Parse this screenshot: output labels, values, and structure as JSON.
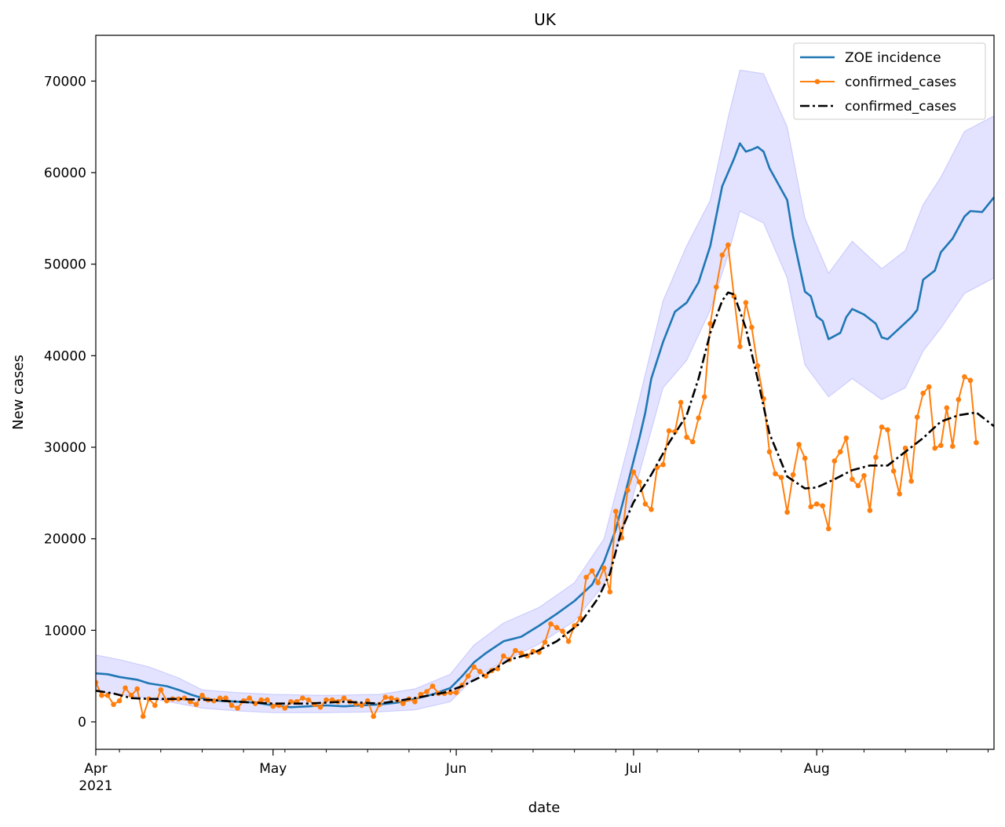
{
  "chart_data": {
    "type": "line",
    "title": "UK",
    "xlabel": "date",
    "ylabel": "New cases",
    "x_start": "2021-04-01",
    "x_end": "2021-08-31",
    "xlim": [
      "2021-04-01",
      "2021-08-31"
    ],
    "ylim": [
      -3000,
      75000
    ],
    "y_ticks": [
      0,
      10000,
      20000,
      30000,
      40000,
      50000,
      60000,
      70000
    ],
    "y_tick_labels": [
      "0",
      "10000",
      "20000",
      "30000",
      "40000",
      "50000",
      "60000",
      "70000"
    ],
    "x_ticks": [
      {
        "date": "2021-04-01",
        "label": "Apr",
        "sublabel": "2021"
      },
      {
        "date": "2021-05-01",
        "label": "May",
        "sublabel": ""
      },
      {
        "date": "2021-06-01",
        "label": "Jun",
        "sublabel": ""
      },
      {
        "date": "2021-07-01",
        "label": "Jul",
        "sublabel": ""
      },
      {
        "date": "2021-08-01",
        "label": "Aug",
        "sublabel": ""
      }
    ],
    "legend_position": "top-right",
    "grid": false,
    "series": [
      {
        "name": "ZOE incidence",
        "color": "#1f77b4",
        "style": "solid",
        "band_color": "#6666ff",
        "points": [
          [
            "2021-04-01",
            5300
          ],
          [
            "2021-04-03",
            5200
          ],
          [
            "2021-04-05",
            4900
          ],
          [
            "2021-04-08",
            4600
          ],
          [
            "2021-04-10",
            4200
          ],
          [
            "2021-04-13",
            3900
          ],
          [
            "2021-04-15",
            3500
          ],
          [
            "2021-04-17",
            3000
          ],
          [
            "2021-04-19",
            2600
          ],
          [
            "2021-04-22",
            2300
          ],
          [
            "2021-04-25",
            2200
          ],
          [
            "2021-04-28",
            2100
          ],
          [
            "2021-05-01",
            1800
          ],
          [
            "2021-05-04",
            1600
          ],
          [
            "2021-05-07",
            1700
          ],
          [
            "2021-05-10",
            1800
          ],
          [
            "2021-05-13",
            1700
          ],
          [
            "2021-05-16",
            1800
          ],
          [
            "2021-05-19",
            1900
          ],
          [
            "2021-05-22",
            2100
          ],
          [
            "2021-05-25",
            2500
          ],
          [
            "2021-05-28",
            3000
          ],
          [
            "2021-05-31",
            3700
          ],
          [
            "2021-06-02",
            5000
          ],
          [
            "2021-06-04",
            6500
          ],
          [
            "2021-06-06",
            7500
          ],
          [
            "2021-06-09",
            8800
          ],
          [
            "2021-06-12",
            9300
          ],
          [
            "2021-06-15",
            10500
          ],
          [
            "2021-06-18",
            11800
          ],
          [
            "2021-06-21",
            13200
          ],
          [
            "2021-06-24",
            15000
          ],
          [
            "2021-06-26",
            17500
          ],
          [
            "2021-06-28",
            21000
          ],
          [
            "2021-06-30",
            26000
          ],
          [
            "2021-07-02",
            31000
          ],
          [
            "2021-07-03",
            33800
          ],
          [
            "2021-07-04",
            37500
          ],
          [
            "2021-07-06",
            41500
          ],
          [
            "2021-07-08",
            44800
          ],
          [
            "2021-07-10",
            45800
          ],
          [
            "2021-07-12",
            48000
          ],
          [
            "2021-07-14",
            52000
          ],
          [
            "2021-07-16",
            58500
          ],
          [
            "2021-07-18",
            61500
          ],
          [
            "2021-07-19",
            63200
          ],
          [
            "2021-07-20",
            62300
          ],
          [
            "2021-07-21",
            62500
          ],
          [
            "2021-07-22",
            62800
          ],
          [
            "2021-07-23",
            62300
          ],
          [
            "2021-07-24",
            60500
          ],
          [
            "2021-07-27",
            57000
          ],
          [
            "2021-07-28",
            53000
          ],
          [
            "2021-07-30",
            47000
          ],
          [
            "2021-07-31",
            46500
          ],
          [
            "2021-08-01",
            44300
          ],
          [
            "2021-08-02",
            43800
          ],
          [
            "2021-08-03",
            41800
          ],
          [
            "2021-08-05",
            42500
          ],
          [
            "2021-08-06",
            44200
          ],
          [
            "2021-08-07",
            45100
          ],
          [
            "2021-08-09",
            44500
          ],
          [
            "2021-08-11",
            43500
          ],
          [
            "2021-08-12",
            42000
          ],
          [
            "2021-08-13",
            41800
          ],
          [
            "2021-08-15",
            43000
          ],
          [
            "2021-08-17",
            44200
          ],
          [
            "2021-08-18",
            45000
          ],
          [
            "2021-08-19",
            48300
          ],
          [
            "2021-08-21",
            49300
          ],
          [
            "2021-08-22",
            51300
          ],
          [
            "2021-08-24",
            52800
          ],
          [
            "2021-08-25",
            54000
          ],
          [
            "2021-08-26",
            55200
          ],
          [
            "2021-08-27",
            55800
          ],
          [
            "2021-08-29",
            55700
          ],
          [
            "2021-08-31",
            57300
          ]
        ],
        "band_points": [
          [
            "2021-04-01",
            7300,
            3300
          ],
          [
            "2021-04-05",
            6800,
            3000
          ],
          [
            "2021-04-10",
            6000,
            2600
          ],
          [
            "2021-04-15",
            4800,
            2000
          ],
          [
            "2021-04-19",
            3500,
            1500
          ],
          [
            "2021-04-25",
            3200,
            1200
          ],
          [
            "2021-05-01",
            3000,
            1000
          ],
          [
            "2021-05-10",
            2900,
            1000
          ],
          [
            "2021-05-19",
            3000,
            1100
          ],
          [
            "2021-05-25",
            3600,
            1300
          ],
          [
            "2021-05-31",
            5200,
            2200
          ],
          [
            "2021-06-04",
            8400,
            4800
          ],
          [
            "2021-06-09",
            10800,
            6600
          ],
          [
            "2021-06-15",
            12500,
            8500
          ],
          [
            "2021-06-21",
            15200,
            11000
          ],
          [
            "2021-06-26",
            20000,
            15000
          ],
          [
            "2021-06-30",
            30000,
            22500
          ],
          [
            "2021-07-03",
            38000,
            29500
          ],
          [
            "2021-07-06",
            46000,
            36500
          ],
          [
            "2021-07-10",
            52000,
            39500
          ],
          [
            "2021-07-14",
            57000,
            45000
          ],
          [
            "2021-07-17",
            66000,
            51000
          ],
          [
            "2021-07-19",
            71200,
            55800
          ],
          [
            "2021-07-23",
            70800,
            54500
          ],
          [
            "2021-07-27",
            65000,
            48500
          ],
          [
            "2021-07-30",
            55000,
            39000
          ],
          [
            "2021-08-03",
            49000,
            35500
          ],
          [
            "2021-08-07",
            52500,
            37500
          ],
          [
            "2021-08-12",
            49500,
            35200
          ],
          [
            "2021-08-16",
            51500,
            36500
          ],
          [
            "2021-08-19",
            56500,
            40500
          ],
          [
            "2021-08-22",
            59500,
            43000
          ],
          [
            "2021-08-26",
            64500,
            46800
          ],
          [
            "2021-08-31",
            66200,
            48500
          ]
        ]
      },
      {
        "name": "confirmed_cases",
        "color": "#ff7f0e",
        "style": "solid-dots",
        "start_date": "2021-04-01",
        "values": [
          4300,
          2900,
          2900,
          1900,
          2300,
          3700,
          2900,
          3600,
          600,
          2500,
          1800,
          3500,
          2300,
          2500,
          2500,
          2600,
          2200,
          1900,
          2900,
          2400,
          2300,
          2600,
          2600,
          1800,
          1500,
          2300,
          2600,
          2000,
          2400,
          2400,
          1700,
          1800,
          1500,
          2200,
          2200,
          2600,
          2400,
          1900,
          1600,
          2400,
          2400,
          2200,
          2600,
          2200,
          2000,
          1800,
          2300,
          600,
          1900,
          2700,
          2600,
          2400,
          2000,
          2500,
          2200,
          3000,
          3300,
          3900,
          3100,
          3100,
          3200,
          3200,
          4000,
          5000,
          6000,
          5500,
          5000,
          5600,
          5800,
          7200,
          6800,
          7800,
          7500,
          7200,
          7700,
          7600,
          8700,
          10700,
          10300,
          9900,
          8800,
          10500,
          11300,
          15800,
          16500,
          15200,
          16800,
          14200,
          23000,
          20100,
          25300,
          27300,
          26200,
          23800,
          23200,
          27800,
          28100,
          31800,
          31700,
          34900,
          31100,
          30600,
          33200,
          35500,
          43500,
          47500,
          51000,
          52100,
          46500,
          41000,
          45800,
          43100,
          38900,
          35300,
          29500,
          27100,
          26700,
          22900,
          27000,
          30300,
          28800,
          23500,
          23800,
          23600,
          21100,
          28500,
          29500,
          31000,
          26500,
          25800,
          26900,
          23100,
          28900,
          32200,
          31900,
          27400,
          24900,
          29900,
          26300,
          33300,
          35900,
          36600,
          29900,
          30200,
          34300,
          30100,
          35200,
          37700,
          37300,
          30500
        ]
      },
      {
        "name": "confirmed_cases",
        "color": "#000000",
        "style": "dash-dot",
        "points": [
          [
            "2021-04-01",
            3400
          ],
          [
            "2021-04-04",
            3100
          ],
          [
            "2021-04-07",
            2600
          ],
          [
            "2021-04-10",
            2500
          ],
          [
            "2021-04-15",
            2500
          ],
          [
            "2021-04-20",
            2400
          ],
          [
            "2021-04-25",
            2200
          ],
          [
            "2021-05-01",
            2000
          ],
          [
            "2021-05-07",
            2000
          ],
          [
            "2021-05-13",
            2200
          ],
          [
            "2021-05-19",
            2000
          ],
          [
            "2021-05-25",
            2600
          ],
          [
            "2021-05-30",
            3200
          ],
          [
            "2021-06-02",
            3900
          ],
          [
            "2021-06-06",
            5200
          ],
          [
            "2021-06-10",
            6800
          ],
          [
            "2021-06-14",
            7500
          ],
          [
            "2021-06-18",
            8800
          ],
          [
            "2021-06-22",
            10800
          ],
          [
            "2021-06-25",
            13500
          ],
          [
            "2021-06-27",
            16200
          ],
          [
            "2021-06-29",
            21000
          ],
          [
            "2021-07-01",
            24000
          ],
          [
            "2021-07-04",
            27000
          ],
          [
            "2021-07-07",
            30500
          ],
          [
            "2021-07-10",
            33500
          ],
          [
            "2021-07-12",
            37500
          ],
          [
            "2021-07-14",
            42500
          ],
          [
            "2021-07-16",
            46000
          ],
          [
            "2021-07-17",
            46900
          ],
          [
            "2021-07-18",
            46700
          ],
          [
            "2021-07-20",
            43000
          ],
          [
            "2021-07-22",
            37500
          ],
          [
            "2021-07-24",
            31500
          ],
          [
            "2021-07-27",
            26800
          ],
          [
            "2021-07-30",
            25500
          ],
          [
            "2021-08-01",
            25600
          ],
          [
            "2021-08-04",
            26500
          ],
          [
            "2021-08-07",
            27500
          ],
          [
            "2021-08-10",
            28000
          ],
          [
            "2021-08-13",
            28000
          ],
          [
            "2021-08-16",
            29500
          ],
          [
            "2021-08-19",
            31000
          ],
          [
            "2021-08-22",
            32800
          ],
          [
            "2021-08-25",
            33500
          ],
          [
            "2021-08-28",
            33800
          ],
          [
            "2021-08-31",
            32300
          ]
        ]
      }
    ]
  }
}
